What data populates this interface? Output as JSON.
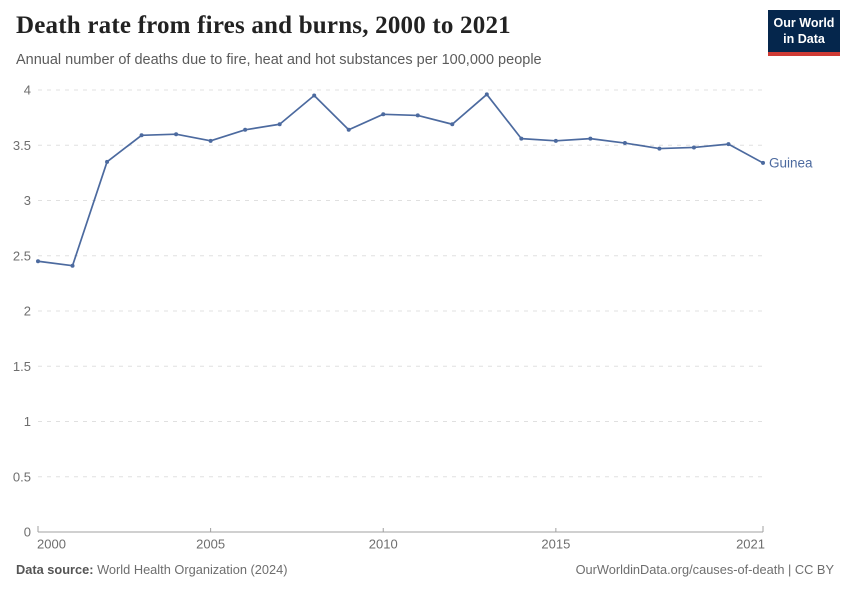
{
  "header": {
    "title": "Death rate from fires and burns, 2000 to 2021",
    "subtitle": "Annual number of deaths due to fire, heat and hot substances per 100,000 people",
    "logo": {
      "line1": "Our World",
      "line2": "in Data"
    }
  },
  "chart_data": {
    "type": "line",
    "title": "Death rate from fires and burns, 2000 to 2021",
    "subtitle": "Annual number of deaths due to fire, heat and hot substances per 100,000 people",
    "x": [
      2000,
      2001,
      2002,
      2003,
      2004,
      2005,
      2006,
      2007,
      2008,
      2009,
      2010,
      2011,
      2012,
      2013,
      2014,
      2015,
      2016,
      2017,
      2018,
      2019,
      2020,
      2021
    ],
    "series": [
      {
        "name": "Guinea",
        "color": "#4c6a9f",
        "values": [
          2.45,
          2.41,
          3.35,
          3.59,
          3.6,
          3.54,
          3.64,
          3.69,
          3.95,
          3.64,
          3.78,
          3.77,
          3.69,
          3.96,
          3.56,
          3.54,
          3.56,
          3.52,
          3.47,
          3.48,
          3.51,
          3.34
        ]
      }
    ],
    "xlabel": "",
    "ylabel": "",
    "x_ticks": [
      2000,
      2005,
      2010,
      2015,
      2021
    ],
    "y_ticks": [
      0,
      0.5,
      1,
      1.5,
      2,
      2.5,
      3,
      3.5,
      4
    ],
    "xlim": [
      2000,
      2021
    ],
    "ylim": [
      0,
      4
    ],
    "grid": "horizontal-dashed",
    "legend_position": "line-end-label"
  },
  "footer": {
    "source_label": "Data source:",
    "source_text": " World Health Organization (2024)",
    "credit": "OurWorldinData.org/causes-of-death | CC BY"
  },
  "colors": {
    "series": "#4c6a9f",
    "grid": "#e0e0e0",
    "axis": "#a0a0a0",
    "tick_label": "#6e6e6e",
    "title": "#222222",
    "subtitle": "#5b5b5b",
    "logo_bg": "#05264c",
    "logo_accent": "#cf3a34"
  }
}
